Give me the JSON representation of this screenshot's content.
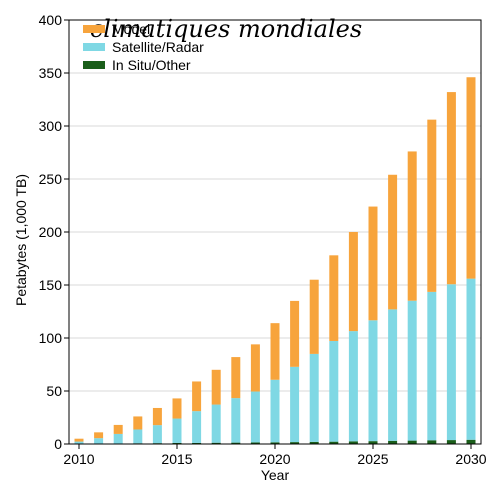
{
  "chart_data": {
    "type": "bar",
    "stacked": true,
    "title": "climatiques mondiales",
    "xlabel": "Year",
    "ylabel": "Petabytes (1,000 TB)",
    "xlim": [
      2010,
      2030
    ],
    "ylim": [
      0,
      400
    ],
    "xticks": [
      "2010",
      "2015",
      "2020",
      "2025",
      "2030"
    ],
    "yticks": [
      "0",
      "50",
      "100",
      "150",
      "200",
      "250",
      "300",
      "350",
      "400"
    ],
    "legend_position": "top-left",
    "categories": [
      2010,
      2011,
      2012,
      2013,
      2014,
      2015,
      2016,
      2017,
      2018,
      2019,
      2020,
      2021,
      2022,
      2023,
      2024,
      2025,
      2026,
      2027,
      2028,
      2029,
      2030
    ],
    "series": [
      {
        "name": "In Situ/Other",
        "color": "#1a5e1a",
        "values": [
          0.3,
          0.5,
          0.5,
          0.7,
          0.8,
          1,
          1,
          1.2,
          1.3,
          1.5,
          1.6,
          1.8,
          2,
          2.2,
          2.5,
          2.7,
          3,
          3.2,
          3.5,
          3.7,
          4
        ]
      },
      {
        "name": "Satellite/Radar",
        "color": "#7fd8e4",
        "values": [
          2,
          5,
          9,
          13,
          17,
          23,
          30,
          36,
          42,
          48,
          59,
          71,
          83,
          95,
          104,
          114,
          124,
          132,
          140,
          147,
          152
        ]
      },
      {
        "name": "Model",
        "color": "#f7a43c",
        "values": [
          2.7,
          5.5,
          8.5,
          12.3,
          16.2,
          19,
          28,
          32.8,
          38.7,
          44.5,
          53.4,
          62.2,
          70,
          80.8,
          93.5,
          107.3,
          127,
          140.8,
          162.5,
          181.3,
          190
        ]
      }
    ]
  }
}
